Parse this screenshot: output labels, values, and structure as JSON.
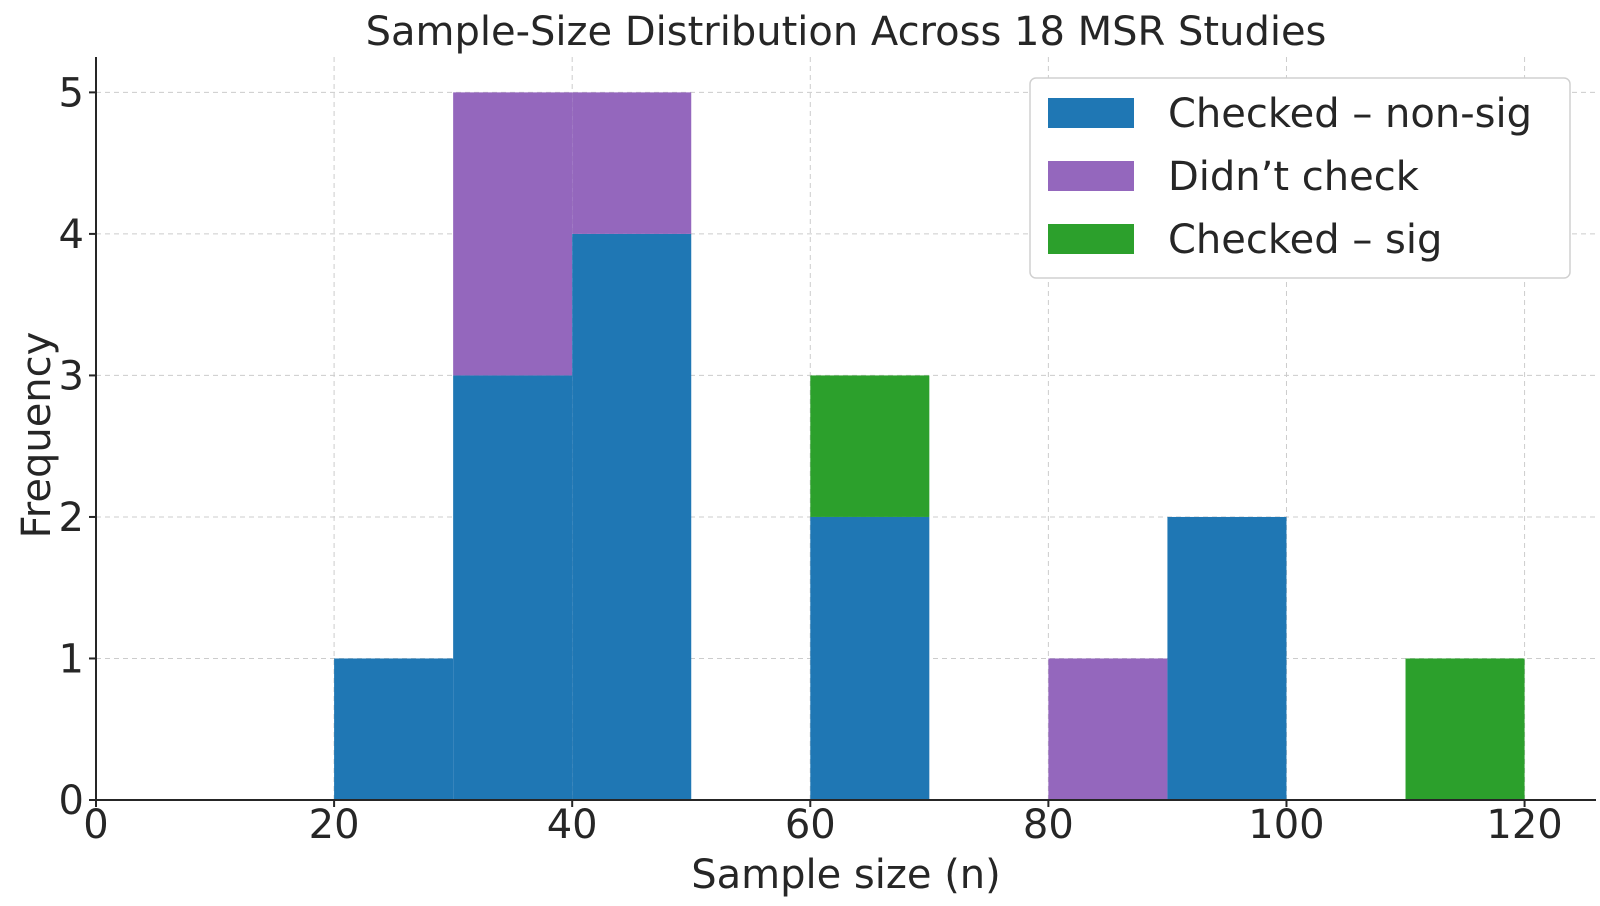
{
  "chart_data": {
    "type": "bar",
    "subtype": "stacked-histogram",
    "title": "Sample-Size Distribution Across 18 MSR Studies",
    "xlabel": "Sample size (n)",
    "ylabel": "Frequency",
    "xlim": [
      0,
      126
    ],
    "ylim": [
      0,
      5.25
    ],
    "xticks": [
      0,
      20,
      40,
      60,
      80,
      100,
      120
    ],
    "yticks": [
      0,
      1,
      2,
      3,
      4,
      5
    ],
    "grid": true,
    "legend_position": "top-right",
    "bins": [
      [
        20,
        30
      ],
      [
        30,
        40
      ],
      [
        40,
        50
      ],
      [
        50,
        60
      ],
      [
        60,
        70
      ],
      [
        70,
        80
      ],
      [
        80,
        90
      ],
      [
        90,
        100
      ],
      [
        100,
        110
      ],
      [
        110,
        120
      ]
    ],
    "series": [
      {
        "name": "Checked – non-sig",
        "color": "#1f77b4",
        "values": [
          1,
          3,
          4,
          0,
          2,
          0,
          0,
          2,
          0,
          0
        ]
      },
      {
        "name": "Didn’t check",
        "color": "#9467bd",
        "values": [
          0,
          2,
          1,
          0,
          0,
          0,
          1,
          0,
          0,
          0
        ]
      },
      {
        "name": "Checked – sig",
        "color": "#2ca02c",
        "values": [
          0,
          0,
          0,
          0,
          1,
          0,
          0,
          0,
          0,
          1
        ]
      }
    ]
  }
}
